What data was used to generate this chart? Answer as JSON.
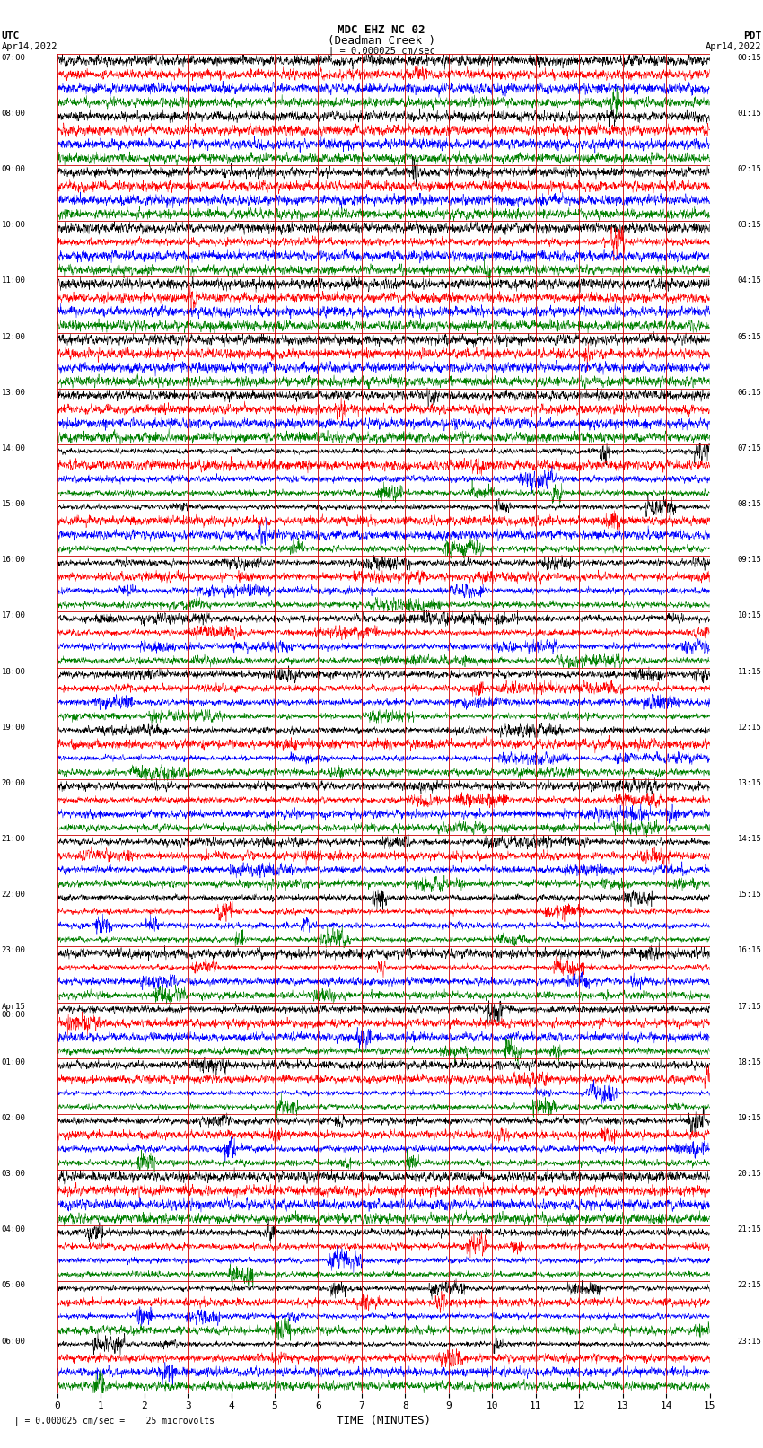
{
  "title_line1": "MDC EHZ NC 02",
  "title_line2": "(Deadman Creek )",
  "scale_label": "| = 0.000025 cm/sec",
  "left_header": "UTC",
  "right_header": "PDT",
  "left_date": "Apr14,2022",
  "right_date": "Apr14,2022",
  "xlabel": "TIME (MINUTES)",
  "bottom_label": "  | = 0.000025 cm/sec =    25 microvolts",
  "utc_hour_labels": [
    "07:00",
    "08:00",
    "09:00",
    "10:00",
    "11:00",
    "12:00",
    "13:00",
    "14:00",
    "15:00",
    "16:00",
    "17:00",
    "18:00",
    "19:00",
    "20:00",
    "21:00",
    "22:00",
    "23:00",
    "Apr15\n00:00",
    "01:00",
    "02:00",
    "03:00",
    "04:00",
    "05:00",
    "06:00"
  ],
  "pdt_hour_labels": [
    "00:15",
    "01:15",
    "02:15",
    "03:15",
    "04:15",
    "05:15",
    "06:15",
    "07:15",
    "08:15",
    "09:15",
    "10:15",
    "11:15",
    "12:15",
    "13:15",
    "14:15",
    "15:15",
    "16:15",
    "17:15",
    "18:15",
    "19:15",
    "20:15",
    "21:15",
    "22:15",
    "23:15"
  ],
  "colors": [
    "black",
    "red",
    "blue",
    "green"
  ],
  "bg_color": "#ffffff",
  "grid_color": "#cc0000",
  "fig_width": 8.5,
  "fig_height": 16.13,
  "dpi": 100,
  "xmin": 0,
  "xmax": 15,
  "n_hours": 24,
  "n_traces_per_hour": 4,
  "xticks": [
    0,
    1,
    2,
    3,
    4,
    5,
    6,
    7,
    8,
    9,
    10,
    11,
    12,
    13,
    14,
    15
  ]
}
